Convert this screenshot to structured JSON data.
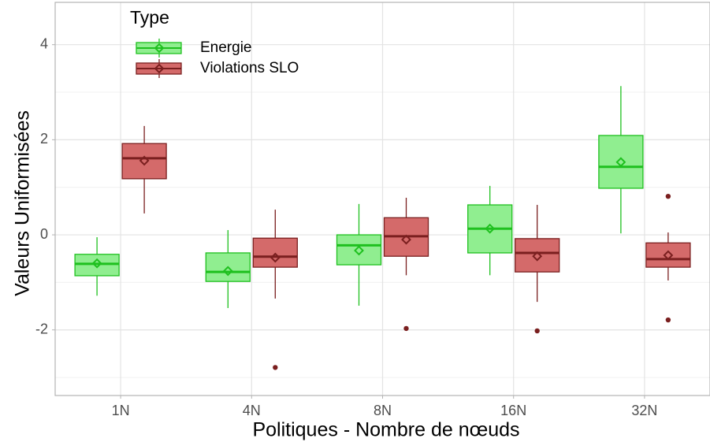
{
  "chart_data": {
    "type": "box",
    "x_label": "Politiques - Nombre de nœuds",
    "y_label": "Valeurs Uniformisées",
    "legend_title": "Type",
    "legend_position": "top-left",
    "grid": true,
    "categories": [
      "1N",
      "4N",
      "8N",
      "16N",
      "32N"
    ],
    "ylim": [
      -3.38,
      4.89
    ],
    "yticks": [
      -2,
      0,
      2,
      4
    ],
    "minor_yticks": [
      -3,
      -1,
      1,
      3
    ],
    "series": [
      {
        "name": "Energie",
        "color": "#90ee90",
        "stroke": "#1fc01f",
        "boxes": [
          {
            "low": -1.28,
            "q1": -0.86,
            "median": -0.61,
            "q3": -0.41,
            "high": -0.05,
            "mean": -0.6,
            "outliers": []
          },
          {
            "low": -1.54,
            "q1": -0.98,
            "median": -0.78,
            "q3": -0.38,
            "high": 0.1,
            "mean": -0.76,
            "outliers": []
          },
          {
            "low": -1.49,
            "q1": -0.63,
            "median": -0.22,
            "q3": 0,
            "high": 0.65,
            "mean": -0.33,
            "outliers": []
          },
          {
            "low": -0.85,
            "q1": -0.38,
            "median": 0.13,
            "q3": 0.63,
            "high": 1.03,
            "mean": 0.13,
            "outliers": []
          },
          {
            "low": 0.03,
            "q1": 0.98,
            "median": 1.43,
            "q3": 2.09,
            "high": 3.13,
            "mean": 1.53,
            "outliers": []
          }
        ]
      },
      {
        "name": "Violations SLO",
        "color": "#d46a6a",
        "stroke": "#7a1f1f",
        "boxes": [
          {
            "low": 0.45,
            "q1": 1.18,
            "median": 1.61,
            "q3": 1.92,
            "high": 2.29,
            "mean": 1.56,
            "outliers": []
          },
          {
            "low": -1.34,
            "q1": -0.68,
            "median": -0.46,
            "q3": -0.07,
            "high": 0.53,
            "mean": -0.48,
            "outliers": [
              -2.79
            ]
          },
          {
            "low": -0.85,
            "q1": -0.45,
            "median": -0.03,
            "q3": 0.36,
            "high": 0.78,
            "mean": -0.1,
            "outliers": [
              -1.97
            ]
          },
          {
            "low": -1.41,
            "q1": -0.78,
            "median": -0.38,
            "q3": -0.08,
            "high": 0.63,
            "mean": -0.45,
            "outliers": [
              -2.02
            ]
          },
          {
            "low": -0.96,
            "q1": -0.68,
            "median": -0.51,
            "q3": -0.17,
            "high": 0.05,
            "mean": -0.43,
            "outliers": [
              0.81,
              -1.79
            ]
          }
        ]
      }
    ]
  }
}
